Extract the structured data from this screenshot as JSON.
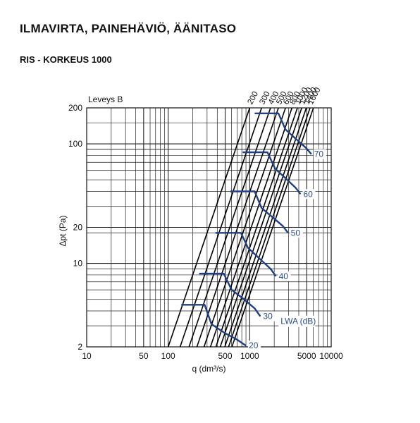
{
  "header": {
    "title": "ILMAVIRTA, PAINEHÄVIÖ, ÄÄNITASO",
    "subtitle": "RIS - KORKEUS 1000"
  },
  "chart_data": {
    "type": "line",
    "title": "",
    "xlabel": "q (dm³/s)",
    "ylabel": "Δpt (Pa)",
    "corner_label": "Leveys B",
    "sound_label": "LWA (dB)",
    "xscale": "log",
    "yscale": "log",
    "xlim": [
      10,
      10000
    ],
    "ylim": [
      2,
      200
    ],
    "x_ticks": [
      "10",
      "50",
      "100",
      "500",
      "1000",
      "5000",
      "10000"
    ],
    "y_ticks": [
      "2",
      "10",
      "20",
      "100",
      "200"
    ],
    "grid": true,
    "lines_at_200pa_q": [
      1000,
      1400,
      1800,
      2250,
      2750,
      3300,
      3850,
      4350,
      4950,
      5500,
      6050
    ],
    "line_slope_note": "dp proportional to q^2",
    "width_labels": [
      "200",
      "300",
      "400",
      "500",
      "600",
      "800",
      "1000",
      "1200",
      "1400",
      "1600"
    ],
    "sound_series": [
      {
        "name": "20",
        "points": [
          [
            145,
            4.5
          ],
          [
            280,
            4.5
          ],
          [
            340,
            3.1
          ],
          [
            500,
            2.6
          ],
          [
            700,
            2.3
          ],
          [
            900,
            2.05
          ]
        ]
      },
      {
        "name": "30",
        "points": [
          [
            240,
            8.2
          ],
          [
            480,
            8.2
          ],
          [
            600,
            6.0
          ],
          [
            850,
            5.0
          ],
          [
            1150,
            4.2
          ],
          [
            1350,
            3.6
          ]
        ]
      },
      {
        "name": "40",
        "points": [
          [
            380,
            18
          ],
          [
            780,
            18
          ],
          [
            950,
            13.5
          ],
          [
            1350,
            10.8
          ],
          [
            1800,
            9.0
          ],
          [
            2100,
            7.8
          ]
        ]
      },
      {
        "name": "50",
        "points": [
          [
            580,
            40
          ],
          [
            1150,
            40
          ],
          [
            1400,
            29
          ],
          [
            1950,
            24
          ],
          [
            2550,
            20.5
          ],
          [
            2950,
            18
          ]
        ]
      },
      {
        "name": "60",
        "points": [
          [
            820,
            85
          ],
          [
            1650,
            85
          ],
          [
            2050,
            62
          ],
          [
            2800,
            51
          ],
          [
            3650,
            43
          ],
          [
            4200,
            38
          ]
        ]
      },
      {
        "name": "70",
        "points": [
          [
            1150,
            180
          ],
          [
            2250,
            180
          ],
          [
            2750,
            132
          ],
          [
            3850,
            107
          ],
          [
            4950,
            92
          ],
          [
            5700,
            82
          ]
        ]
      }
    ]
  }
}
